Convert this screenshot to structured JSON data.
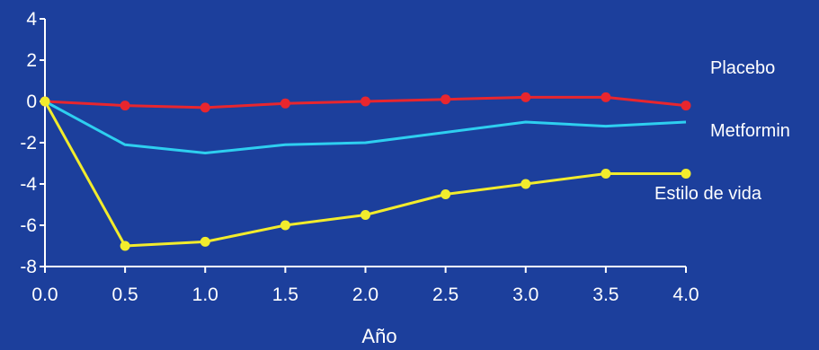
{
  "chart_data": {
    "type": "line",
    "title": "",
    "xlabel": "Año",
    "ylabel": "",
    "x": [
      0.0,
      0.5,
      1.0,
      1.5,
      2.0,
      2.5,
      3.0,
      3.5,
      4.0
    ],
    "xticks": [
      "0.0",
      "0.5",
      "1.0",
      "1.5",
      "2.0",
      "2.5",
      "3.0",
      "3.5",
      "4.0"
    ],
    "yticks": [
      "4",
      "2",
      "0",
      "-2",
      "-4",
      "-6",
      "-8"
    ],
    "xlim": [
      0,
      4
    ],
    "ylim": [
      -8,
      4
    ],
    "grid": false,
    "series": [
      {
        "name": "Placebo",
        "color": "#e8262e",
        "markers": true,
        "values": [
          0,
          -0.2,
          -0.3,
          -0.1,
          0.0,
          0.1,
          0.2,
          0.2,
          -0.2
        ]
      },
      {
        "name": "Metformin",
        "color": "#2ecff0",
        "markers": false,
        "values": [
          0,
          -2.1,
          -2.5,
          -2.1,
          -2.0,
          -1.5,
          -1.0,
          -1.2,
          -1.0
        ]
      },
      {
        "name": "Estilo de vida",
        "color": "#f2ec2c",
        "markers": true,
        "values": [
          0,
          -7.0,
          -6.8,
          -6.0,
          -5.5,
          -4.5,
          -4.0,
          -3.5,
          -3.5
        ]
      }
    ]
  }
}
